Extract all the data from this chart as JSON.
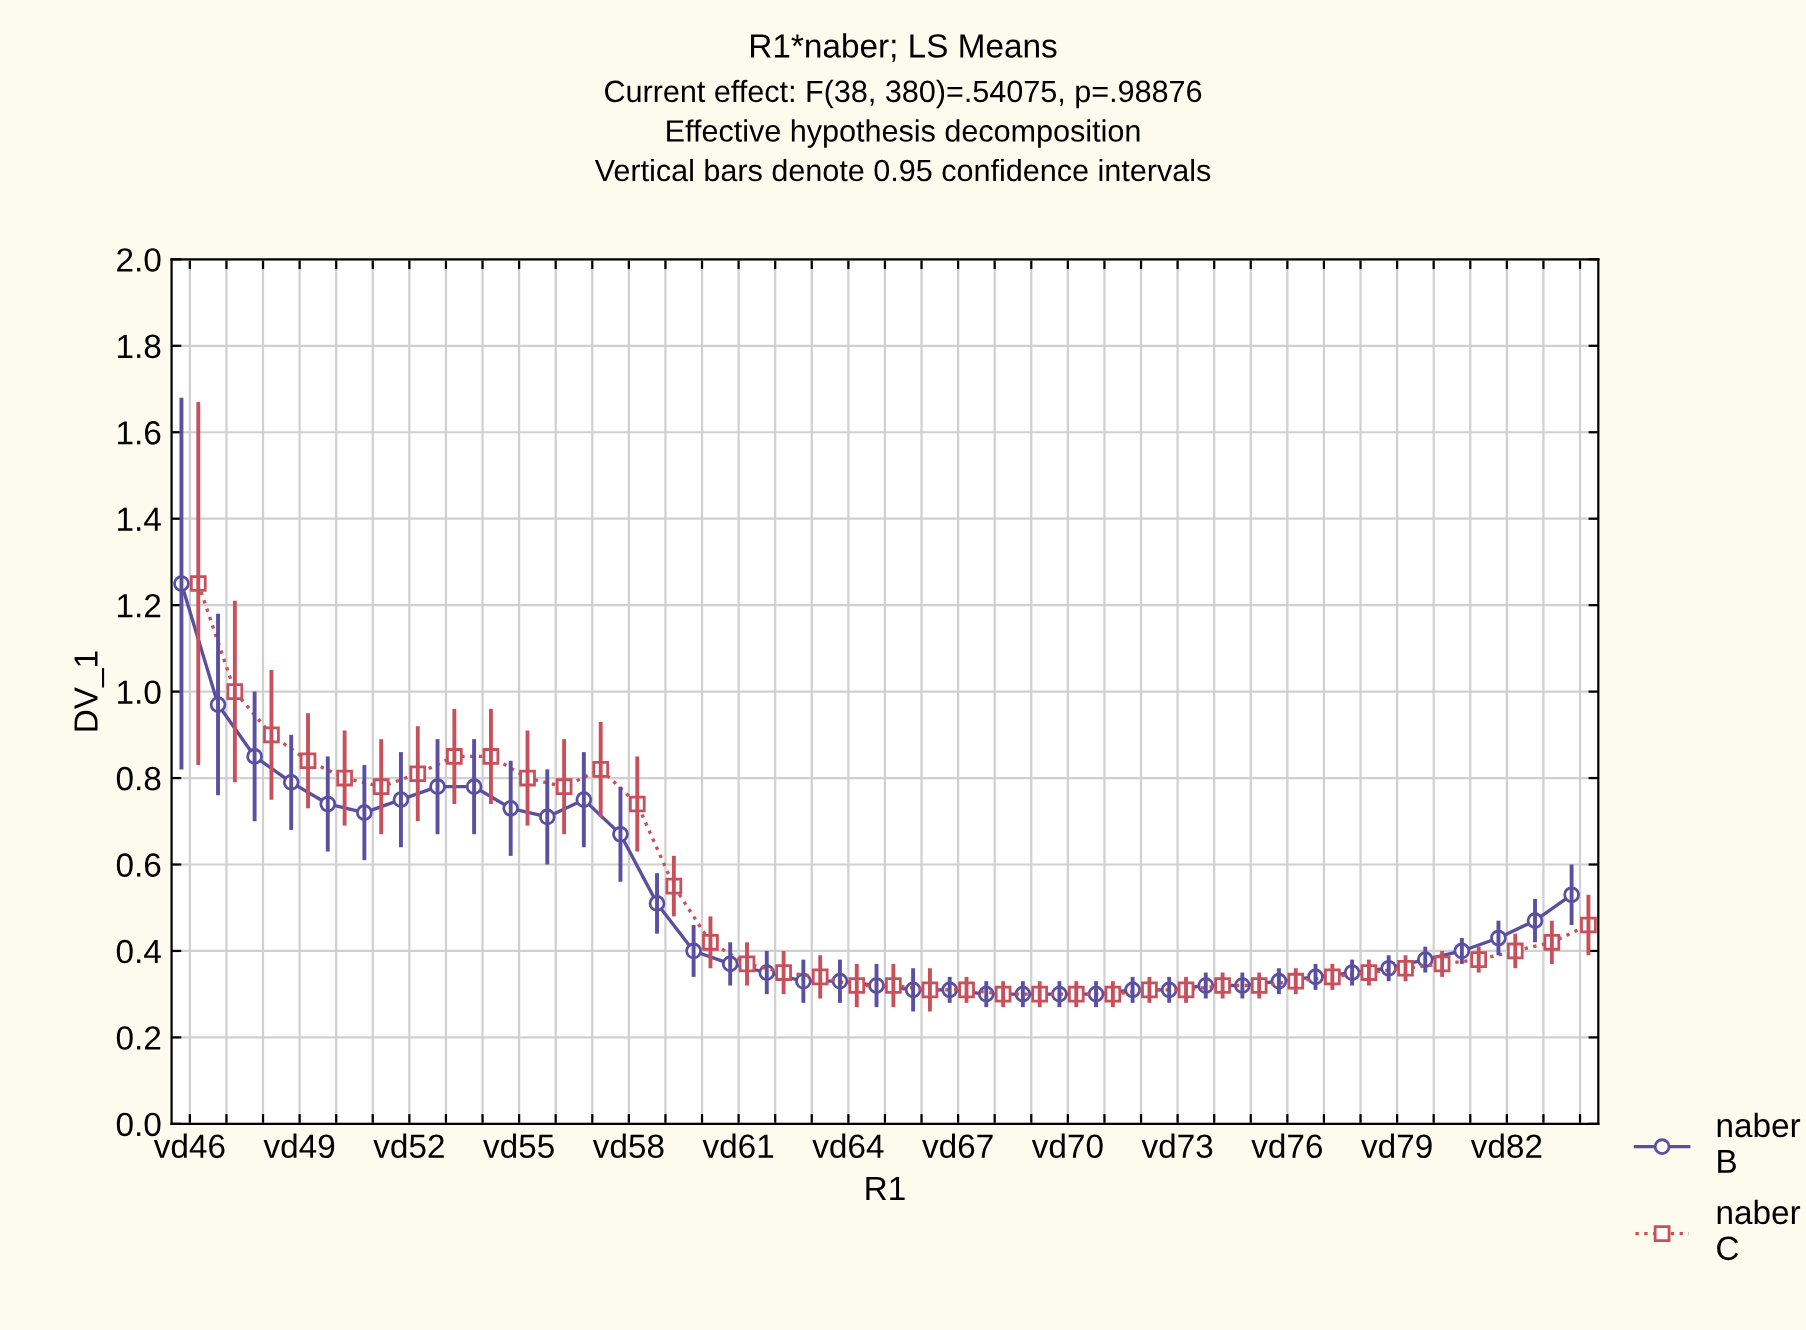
{
  "chart_data": {
    "type": "line",
    "title": "R1*naber; LS Means",
    "subtitle": "Current effect: F(38, 380)=.54075, p=.98876\nEffective hypothesis decomposition\nVertical bars denote 0.95 confidence intervals",
    "xlabel": "R1",
    "ylabel": "DV_1",
    "categories": [
      "vd46",
      null,
      null,
      "vd49",
      null,
      null,
      "vd52",
      null,
      null,
      "vd55",
      null,
      null,
      "vd58",
      null,
      null,
      "vd61",
      null,
      null,
      "vd64",
      null,
      null,
      "vd67",
      null,
      null,
      "vd70",
      null,
      null,
      "vd73",
      null,
      null,
      "vd76",
      null,
      null,
      "vd79",
      null,
      null,
      "vd82",
      null,
      null
    ],
    "series": [
      {
        "name": "naber\nB",
        "color": "#5a4fa0",
        "marker": "circle",
        "line_style": "solid",
        "values": [
          1.25,
          0.97,
          0.85,
          0.79,
          0.74,
          0.72,
          0.75,
          0.78,
          0.78,
          0.73,
          0.71,
          0.75,
          0.67,
          0.51,
          0.4,
          0.37,
          0.35,
          0.33,
          0.33,
          0.32,
          0.31,
          0.31,
          0.3,
          0.3,
          0.3,
          0.3,
          0.31,
          0.31,
          0.32,
          0.32,
          0.33,
          0.34,
          0.35,
          0.36,
          0.38,
          0.4,
          0.43,
          0.47,
          0.53
        ],
        "errors": [
          0.43,
          0.21,
          0.15,
          0.11,
          0.11,
          0.11,
          0.11,
          0.11,
          0.11,
          0.11,
          0.11,
          0.11,
          0.11,
          0.07,
          0.06,
          0.05,
          0.05,
          0.05,
          0.05,
          0.05,
          0.05,
          0.03,
          0.03,
          0.03,
          0.03,
          0.03,
          0.03,
          0.03,
          0.03,
          0.03,
          0.03,
          0.03,
          0.03,
          0.03,
          0.03,
          0.03,
          0.04,
          0.05,
          0.07
        ]
      },
      {
        "name": "naber\nC",
        "color": "#c8505a",
        "marker": "square",
        "line_style": "dotted",
        "values": [
          1.25,
          1.0,
          0.9,
          0.84,
          0.8,
          0.78,
          0.81,
          0.85,
          0.85,
          0.8,
          0.78,
          0.82,
          0.74,
          0.55,
          0.42,
          0.37,
          0.35,
          0.34,
          0.32,
          0.32,
          0.31,
          0.31,
          0.3,
          0.3,
          0.3,
          0.3,
          0.31,
          0.31,
          0.32,
          0.32,
          0.33,
          0.34,
          0.35,
          0.36,
          0.37,
          0.38,
          0.4,
          0.42,
          0.46
        ],
        "errors": [
          0.42,
          0.21,
          0.15,
          0.11,
          0.11,
          0.11,
          0.11,
          0.11,
          0.11,
          0.11,
          0.11,
          0.11,
          0.11,
          0.07,
          0.06,
          0.05,
          0.05,
          0.05,
          0.05,
          0.05,
          0.05,
          0.03,
          0.03,
          0.03,
          0.03,
          0.03,
          0.03,
          0.03,
          0.03,
          0.03,
          0.03,
          0.03,
          0.03,
          0.03,
          0.03,
          0.03,
          0.04,
          0.05,
          0.07
        ]
      }
    ],
    "ylim": [
      0.0,
      2.0
    ],
    "yticks": [
      {
        "value": 0.0,
        "label": "0.0"
      },
      {
        "value": 0.2,
        "label": "0.2"
      },
      {
        "value": 0.4,
        "label": "0.4"
      },
      {
        "value": 0.6,
        "label": "0.6"
      },
      {
        "value": 0.8,
        "label": "0.8"
      },
      {
        "value": 1.0,
        "label": "1.0"
      },
      {
        "value": 1.2,
        "label": "1.2"
      },
      {
        "value": 1.4,
        "label": "1.4"
      },
      {
        "value": 1.6,
        "label": "1.6"
      },
      {
        "value": 1.8,
        "label": "1.8"
      },
      {
        "value": 2.0,
        "label": "2.0"
      }
    ],
    "grid": true,
    "legend": "bottom right"
  }
}
